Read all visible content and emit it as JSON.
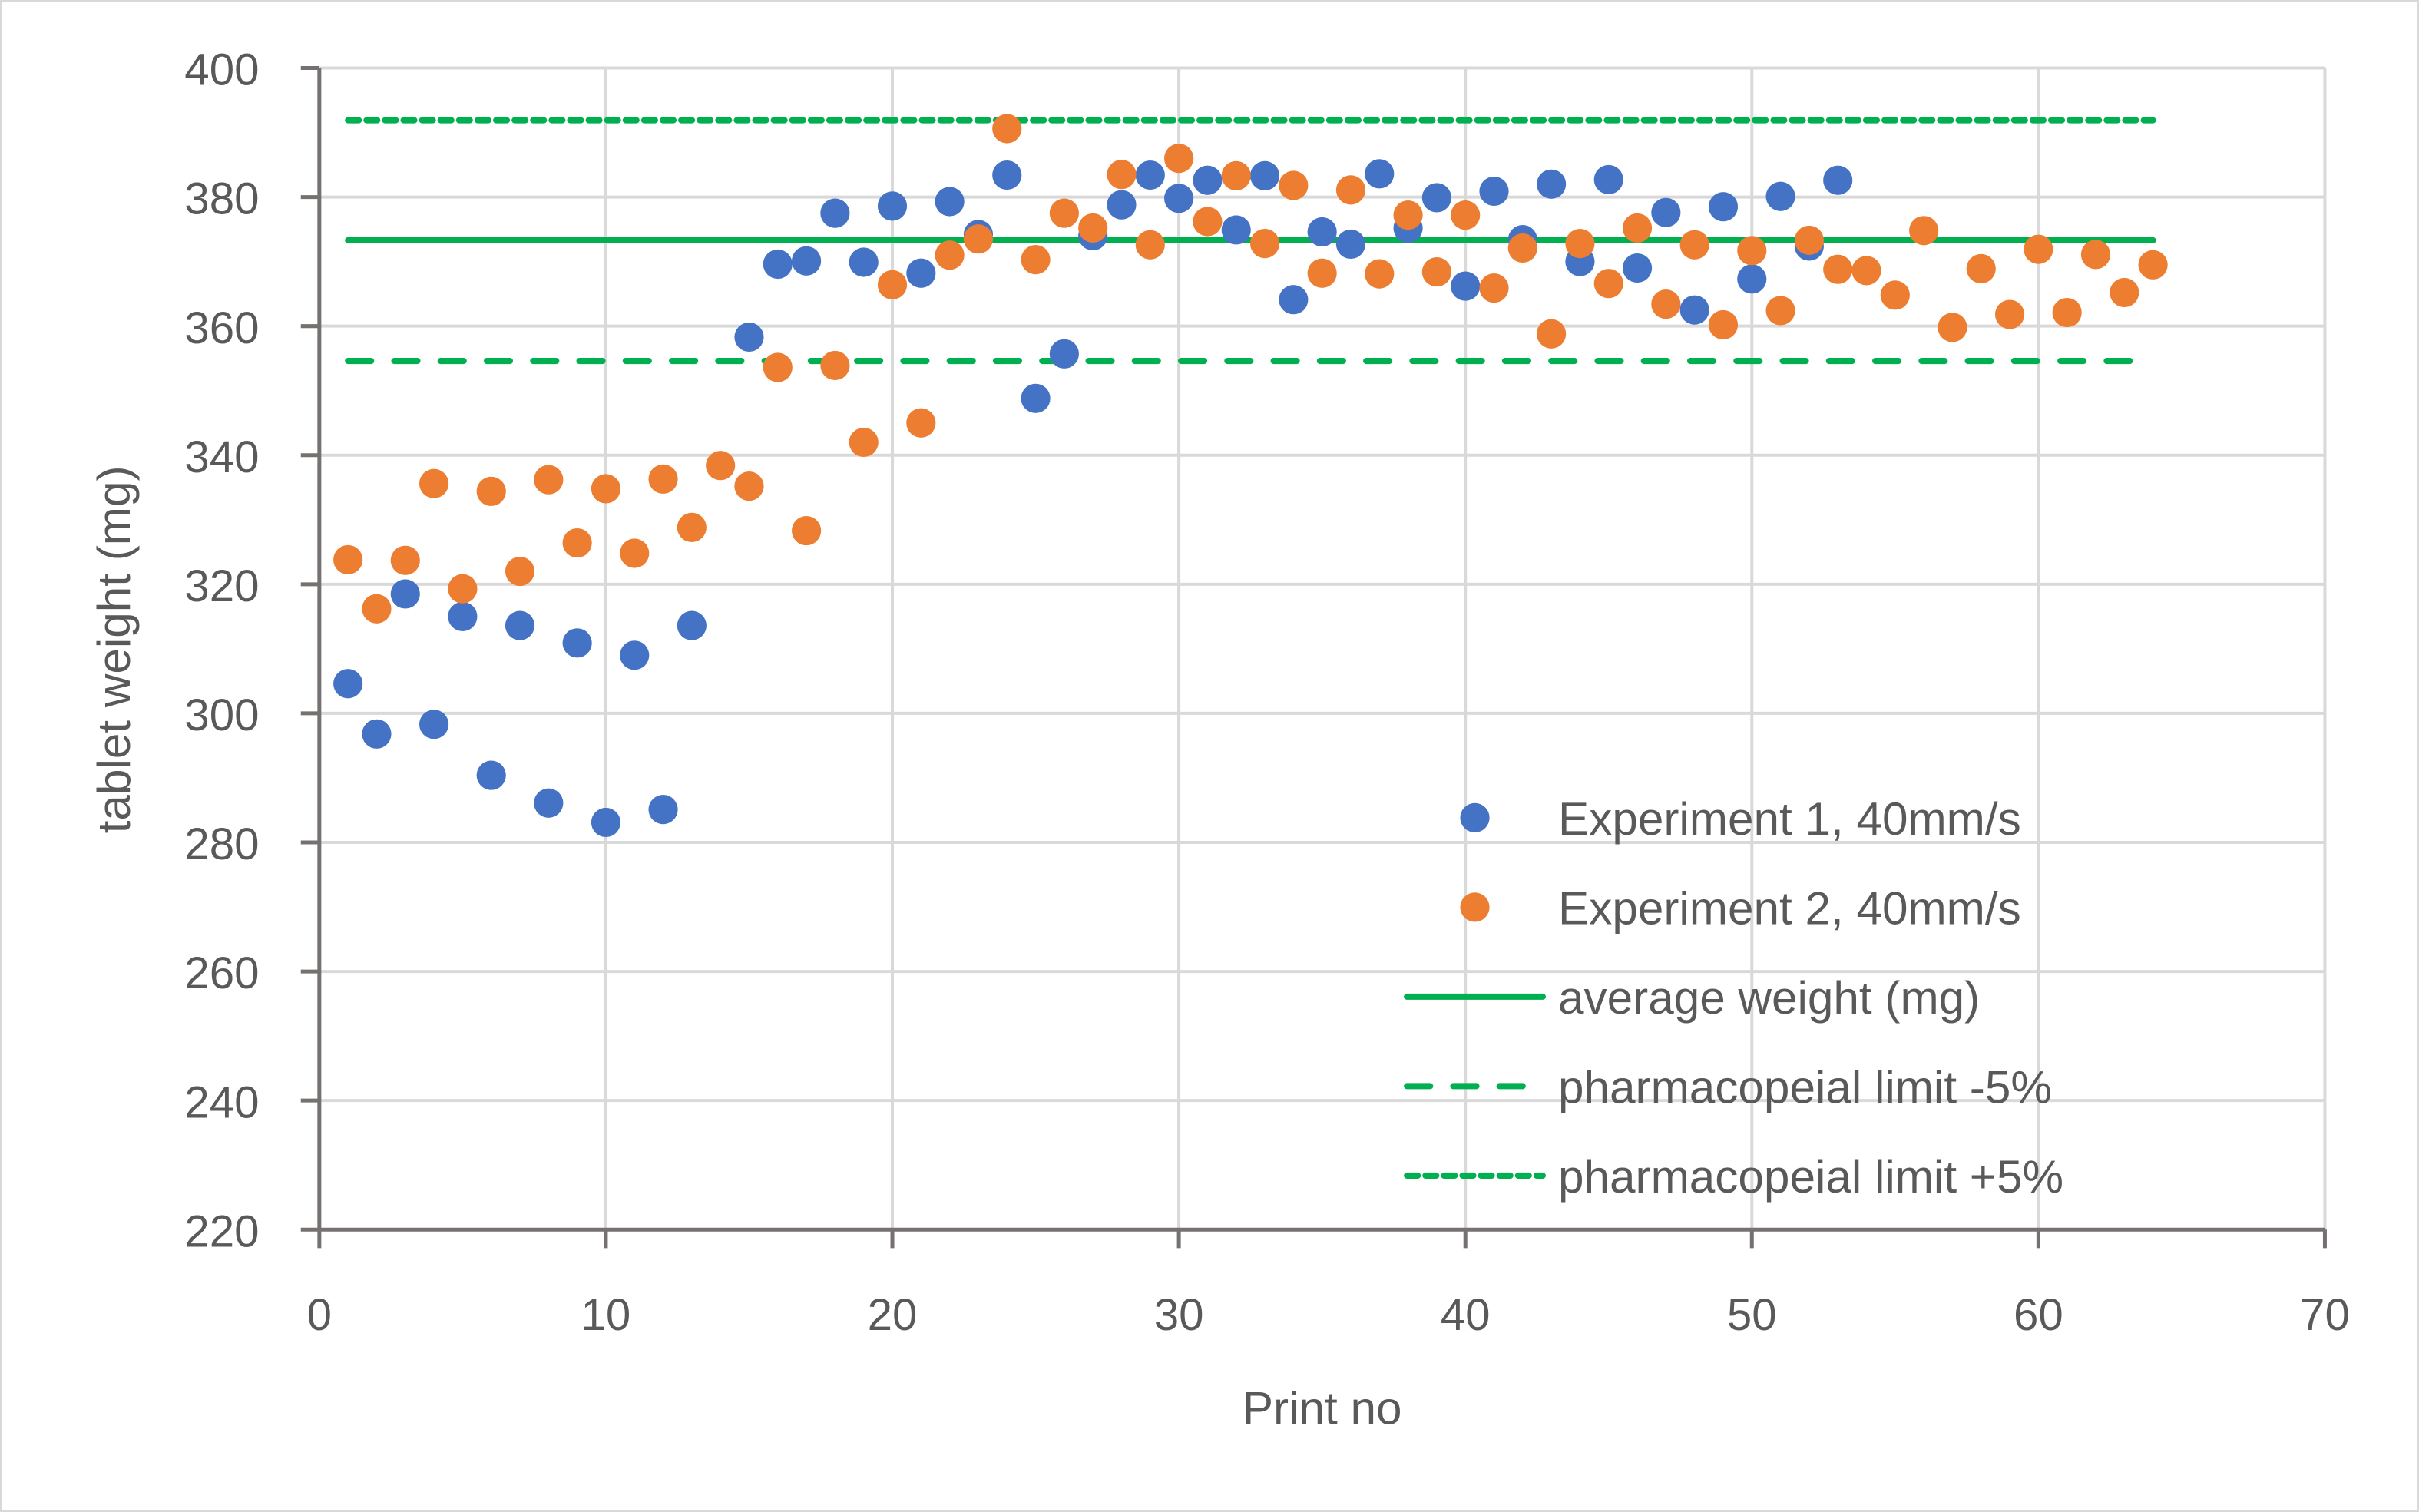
{
  "chart_data": {
    "type": "scatter",
    "title": "",
    "xlabel": "Print no",
    "ylabel": "tablet weight (mg)",
    "xlim": [
      0,
      70
    ],
    "ylim": [
      220,
      400
    ],
    "xticks": [
      0,
      10,
      20,
      30,
      40,
      50,
      60,
      70
    ],
    "yticks": [
      220,
      240,
      260,
      280,
      300,
      320,
      340,
      360,
      380,
      400
    ],
    "xtick_labels": [
      "0",
      "10",
      "20",
      "30",
      "40",
      "50",
      "60",
      "70"
    ],
    "ytick_labels": [
      "220",
      "240",
      "260",
      "280",
      "300",
      "320",
      "340",
      "360",
      "380",
      "400"
    ],
    "grid": true,
    "legend_position": "bottom-right",
    "series": [
      {
        "name": "Experiment 1, 40mm/s",
        "kind": "scatter",
        "color": "#4472c4",
        "x": [
          1,
          2,
          3,
          4,
          5,
          6,
          7,
          8,
          9,
          10,
          11,
          12,
          13,
          15,
          16,
          17,
          18,
          19,
          20,
          21,
          22,
          23,
          24,
          25,
          26,
          27,
          28,
          29,
          30,
          31,
          32,
          33,
          34,
          35,
          36,
          37,
          38,
          39,
          40,
          41,
          42,
          43,
          44,
          45,
          46,
          47,
          48,
          49,
          50,
          51,
          52,
          53
        ],
        "y": [
          304.6,
          296.8,
          318.5,
          298.3,
          315.0,
          290.4,
          313.6,
          286.1,
          310.9,
          283.1,
          309.0,
          285.1,
          313.6,
          358.3,
          369.6,
          370.1,
          377.5,
          369.9,
          378.6,
          368.2,
          379.3,
          374.2,
          383.4,
          348.8,
          355.7,
          374.0,
          378.8,
          383.4,
          379.8,
          382.6,
          374.9,
          383.3,
          364.1,
          374.6,
          372.7,
          383.6,
          375.2,
          379.9,
          366.2,
          380.9,
          373.4,
          382.0,
          370.0,
          382.7,
          369.0,
          377.6,
          362.5,
          378.5,
          367.3,
          380.1,
          372.4,
          382.6
        ]
      },
      {
        "name": "Experiment 2, 40mm/s",
        "kind": "scatter",
        "color": "#ed7d31",
        "x": [
          1,
          2,
          3,
          4,
          5,
          6,
          7,
          8,
          9,
          10,
          11,
          12,
          13,
          14,
          15,
          16,
          17,
          18,
          19,
          20,
          21,
          22,
          23,
          24,
          25,
          26,
          27,
          28,
          29,
          30,
          31,
          32,
          33,
          34,
          35,
          36,
          37,
          38,
          39,
          40,
          41,
          42,
          43,
          44,
          45,
          46,
          47,
          48,
          49,
          50,
          51,
          52,
          53,
          54,
          55,
          56,
          57,
          58,
          59,
          60,
          61,
          62,
          63,
          64
        ],
        "y": [
          323.8,
          316.2,
          323.7,
          335.6,
          319.3,
          334.4,
          322.0,
          336.2,
          326.4,
          334.8,
          324.8,
          336.3,
          328.8,
          338.4,
          335.2,
          353.6,
          328.3,
          353.9,
          342.0,
          366.4,
          345.0,
          371.0,
          373.5,
          390.6,
          370.3,
          377.5,
          375.2,
          383.5,
          372.6,
          386.0,
          376.2,
          383.3,
          372.8,
          381.8,
          368.2,
          381.1,
          368.1,
          377.2,
          368.4,
          377.2,
          365.9,
          372.1,
          358.8,
          372.8,
          366.6,
          375.2,
          363.4,
          372.6,
          360.2,
          371.7,
          362.4,
          373.3,
          368.8,
          368.6,
          364.8,
          374.8,
          359.8,
          368.9,
          361.8,
          371.9,
          362.1,
          371.1,
          365.2,
          369.5
        ]
      },
      {
        "name": "average weight (mg)",
        "kind": "line",
        "style": "solid",
        "color": "#00b050",
        "x": [
          1,
          64
        ],
        "y": [
          373.3,
          373.3
        ]
      },
      {
        "name": "pharmacopeial limit -5%",
        "kind": "line",
        "style": "dash",
        "color": "#00b050",
        "x": [
          1,
          64
        ],
        "y": [
          354.6,
          354.6
        ]
      },
      {
        "name": "pharmacopeial limit +5%",
        "kind": "line",
        "style": "dot",
        "color": "#00b050",
        "x": [
          1,
          64
        ],
        "y": [
          391.9,
          391.9
        ]
      }
    ]
  }
}
